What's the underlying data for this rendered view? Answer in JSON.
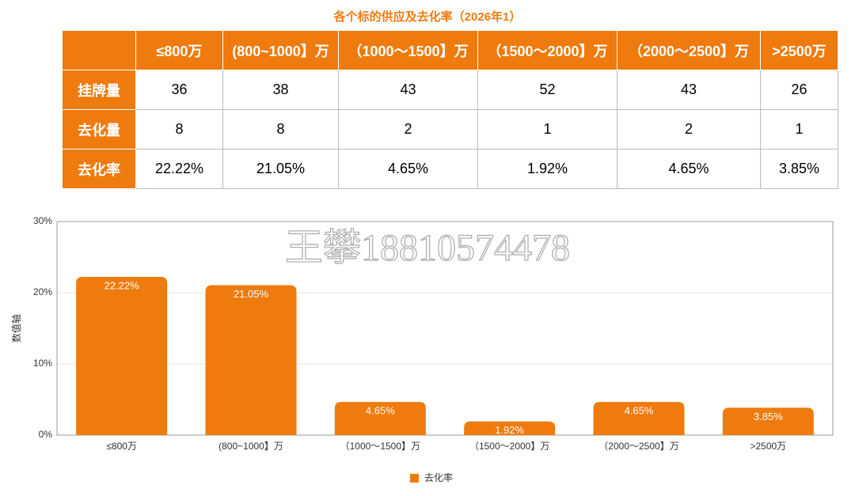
{
  "title": "各个标的供应及去化率（2026年1）",
  "table": {
    "header": [
      "≤800万",
      "(800~1000】万",
      "（1000～1500】万",
      "（1500～2000】万",
      "（2000～2500】万",
      ">2500万"
    ],
    "rows": [
      {
        "label": "挂牌量",
        "cells": [
          36,
          38,
          43,
          52,
          43,
          26
        ]
      },
      {
        "label": "去化量",
        "cells": [
          8,
          8,
          2,
          1,
          2,
          1
        ]
      },
      {
        "label": "去化率",
        "cells": [
          "22.22%",
          "21.05%",
          "4.65%",
          "1.92%",
          "4.65%",
          "3.85%"
        ]
      }
    ]
  },
  "watermark": "王攀18810574478",
  "chart_data": {
    "type": "bar",
    "y_label": "数值轴",
    "categories": [
      "≤800万",
      "(800~1000】万",
      "（1000～1500】万",
      "（1500～2000】万",
      "（2000～2500】万",
      ">2500万"
    ],
    "series": [
      {
        "name": "去化率",
        "color": "#ef7b0e",
        "values": [
          22.22,
          21.05,
          4.65,
          1.92,
          4.65,
          3.85
        ],
        "value_labels": [
          "22.22%",
          "21.05%",
          "4.65%",
          "1.92%",
          "4.65%",
          "3.85%"
        ]
      }
    ],
    "ylim": [
      0,
      30
    ],
    "yticks": [
      {
        "value": 0,
        "label": "0%"
      },
      {
        "value": 10,
        "label": "10%"
      },
      {
        "value": 20,
        "label": "20%"
      },
      {
        "value": 30,
        "label": "30%"
      }
    ],
    "grid": true
  }
}
